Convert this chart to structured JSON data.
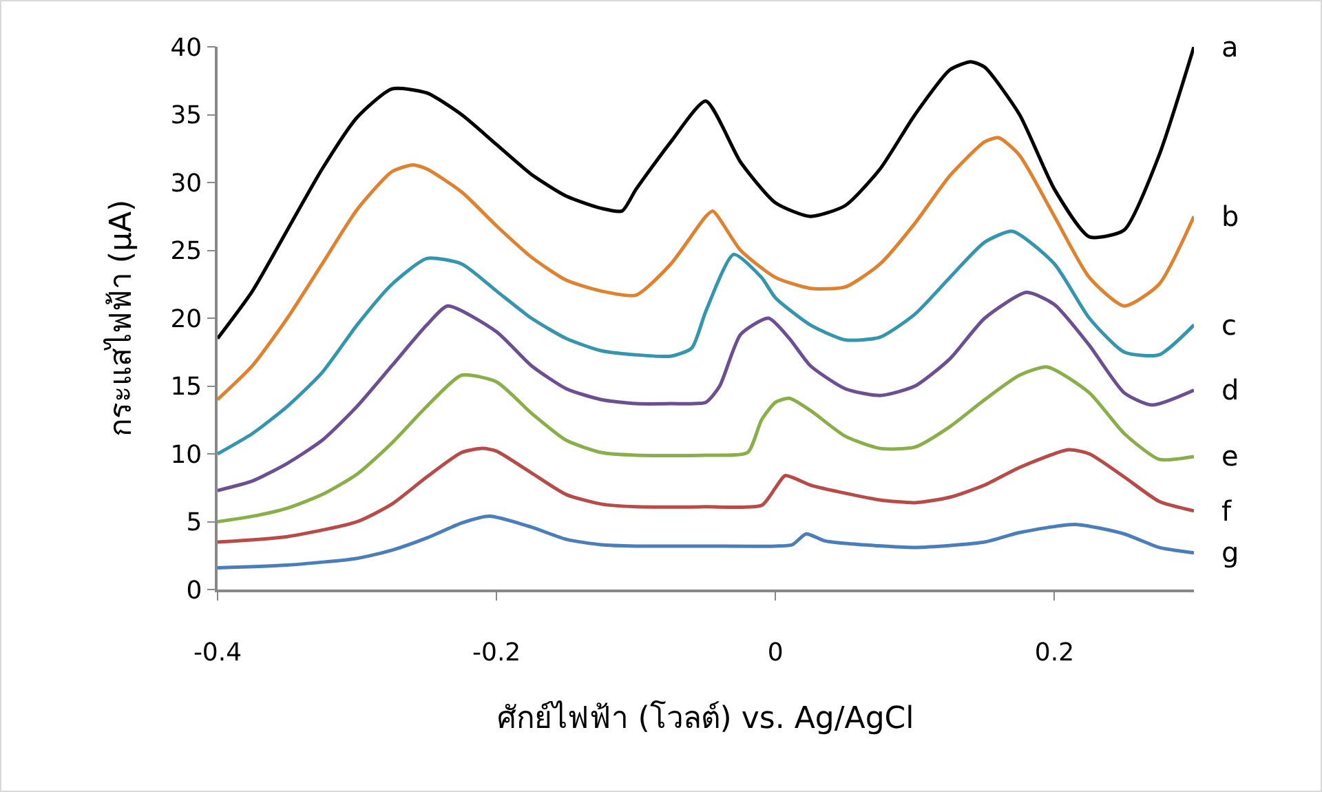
{
  "chart_data": {
    "type": "line",
    "xlabel": "ศักย์ไฟฟ้า (โวลต์) vs. Ag/AgCl",
    "ylabel": "กระแสไฟฟ้า (μA)",
    "xlim": [
      -0.4,
      0.3
    ],
    "xticks": [
      -0.4,
      -0.2,
      0,
      0.2
    ],
    "ylim": [
      0,
      40
    ],
    "yticks": [
      0,
      5,
      10,
      15,
      20,
      25,
      30,
      35,
      40
    ],
    "grid": false,
    "legend": false,
    "marker": "none",
    "line_style": "solid",
    "series": [
      {
        "name": "a",
        "color": "#000000",
        "x": [
          -0.4,
          -0.375,
          -0.35,
          -0.325,
          -0.3,
          -0.275,
          -0.25,
          -0.225,
          -0.2,
          -0.175,
          -0.15,
          -0.125,
          -0.11,
          -0.1,
          -0.075,
          -0.05,
          -0.025,
          0,
          0.025,
          0.05,
          0.075,
          0.1,
          0.125,
          0.14,
          0.15,
          0.175,
          0.2,
          0.225,
          0.25,
          0.275,
          0.3
        ],
        "values": [
          18.5,
          22,
          26.5,
          31,
          34.8,
          36.9,
          36.6,
          35,
          32.8,
          30.6,
          29,
          28.1,
          27.9,
          29.5,
          33,
          36,
          31.5,
          28.5,
          27.5,
          28.3,
          31,
          35,
          38.3,
          38.9,
          38.5,
          35,
          29.5,
          26,
          26.5,
          32,
          40
        ]
      },
      {
        "name": "b",
        "color": "#e0812e",
        "x": [
          -0.4,
          -0.375,
          -0.35,
          -0.325,
          -0.3,
          -0.275,
          -0.26,
          -0.25,
          -0.225,
          -0.2,
          -0.175,
          -0.15,
          -0.125,
          -0.1,
          -0.075,
          -0.05,
          -0.045,
          -0.025,
          0,
          0.025,
          0.05,
          0.075,
          0.1,
          0.125,
          0.15,
          0.16,
          0.175,
          0.2,
          0.225,
          0.25,
          0.275,
          0.3
        ],
        "values": [
          14,
          16.5,
          20,
          24,
          28,
          30.8,
          31.3,
          31,
          29.3,
          26.8,
          24.5,
          22.8,
          22,
          21.7,
          24,
          27.5,
          27.9,
          25,
          23,
          22.2,
          22.3,
          24,
          27,
          30.5,
          33,
          33.3,
          32,
          27.5,
          23,
          20.9,
          22.5,
          27.5
        ]
      },
      {
        "name": "c",
        "color": "#3396ae",
        "x": [
          -0.4,
          -0.375,
          -0.35,
          -0.325,
          -0.3,
          -0.275,
          -0.25,
          -0.225,
          -0.2,
          -0.175,
          -0.15,
          -0.125,
          -0.1,
          -0.075,
          -0.06,
          -0.05,
          -0.03,
          -0.01,
          0,
          0.025,
          0.05,
          0.075,
          0.1,
          0.125,
          0.15,
          0.17,
          0.2,
          0.225,
          0.25,
          0.275,
          0.3
        ],
        "values": [
          10,
          11.5,
          13.5,
          16,
          19.5,
          22.5,
          24.4,
          24,
          22,
          20,
          18.5,
          17.6,
          17.3,
          17.2,
          17.8,
          20.5,
          24.7,
          23,
          21.5,
          19.5,
          18.4,
          18.6,
          20.3,
          23,
          25.6,
          26.4,
          24,
          20,
          17.5,
          17.3,
          19.5
        ]
      },
      {
        "name": "d",
        "color": "#6c4f92",
        "x": [
          -0.4,
          -0.375,
          -0.35,
          -0.325,
          -0.3,
          -0.275,
          -0.25,
          -0.235,
          -0.2,
          -0.175,
          -0.15,
          -0.125,
          -0.1,
          -0.075,
          -0.05,
          -0.04,
          -0.025,
          -0.005,
          0.01,
          0.025,
          0.05,
          0.075,
          0.1,
          0.125,
          0.15,
          0.18,
          0.2,
          0.225,
          0.25,
          0.27,
          0.3
        ],
        "values": [
          7.3,
          8,
          9.3,
          11,
          13.5,
          16.5,
          19.5,
          20.9,
          19,
          16.5,
          14.8,
          14,
          13.7,
          13.7,
          13.8,
          15,
          18.8,
          20,
          18.5,
          16.5,
          14.8,
          14.3,
          15,
          17,
          20,
          21.9,
          21,
          18,
          14.5,
          13.6,
          14.7
        ]
      },
      {
        "name": "e",
        "color": "#8aaf48",
        "x": [
          -0.4,
          -0.375,
          -0.35,
          -0.325,
          -0.3,
          -0.275,
          -0.25,
          -0.225,
          -0.2,
          -0.175,
          -0.15,
          -0.125,
          -0.1,
          -0.05,
          -0.02,
          -0.01,
          0,
          0.01,
          0.025,
          0.05,
          0.075,
          0.1,
          0.125,
          0.15,
          0.175,
          0.195,
          0.225,
          0.25,
          0.275,
          0.3
        ],
        "values": [
          5,
          5.4,
          6,
          7,
          8.5,
          10.8,
          13.5,
          15.8,
          15.3,
          13,
          11,
          10.1,
          9.9,
          9.9,
          10.1,
          12.5,
          13.8,
          14.1,
          13.2,
          11.3,
          10.4,
          10.5,
          12,
          14,
          15.8,
          16.4,
          14.5,
          11.5,
          9.6,
          9.8
        ]
      },
      {
        "name": "f",
        "color": "#b84a48",
        "x": [
          -0.4,
          -0.35,
          -0.3,
          -0.275,
          -0.25,
          -0.225,
          -0.21,
          -0.2,
          -0.175,
          -0.15,
          -0.125,
          -0.1,
          -0.05,
          -0.01,
          0,
          0.007,
          0.025,
          0.05,
          0.075,
          0.1,
          0.125,
          0.15,
          0.175,
          0.21,
          0.225,
          0.25,
          0.275,
          0.3
        ],
        "values": [
          3.5,
          3.9,
          5,
          6.3,
          8.3,
          10.1,
          10.4,
          10.2,
          8.6,
          7,
          6.3,
          6.1,
          6.1,
          6.2,
          7.5,
          8.4,
          7.7,
          7.1,
          6.6,
          6.4,
          6.8,
          7.7,
          9,
          10.3,
          10,
          8.3,
          6.5,
          5.8
        ]
      },
      {
        "name": "g",
        "color": "#4a7ebb",
        "x": [
          -0.4,
          -0.35,
          -0.3,
          -0.275,
          -0.25,
          -0.225,
          -0.205,
          -0.175,
          -0.15,
          -0.125,
          -0.1,
          -0.05,
          0,
          0.012,
          0.022,
          0.035,
          0.05,
          0.1,
          0.15,
          0.175,
          0.215,
          0.25,
          0.275,
          0.3
        ],
        "values": [
          1.6,
          1.8,
          2.3,
          2.9,
          3.8,
          4.9,
          5.4,
          4.6,
          3.7,
          3.3,
          3.2,
          3.2,
          3.2,
          3.3,
          4.1,
          3.6,
          3.4,
          3.1,
          3.5,
          4.2,
          4.8,
          4.1,
          3.1,
          2.7
        ]
      }
    ]
  }
}
